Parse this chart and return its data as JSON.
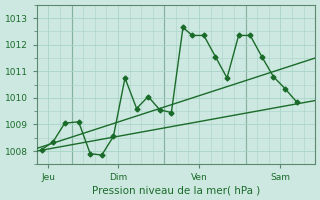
{
  "xlabel": "Pression niveau de la mer( hPa )",
  "ylim": [
    1007.5,
    1013.5
  ],
  "xlim": [
    0,
    12
  ],
  "yticks": [
    1008,
    1009,
    1010,
    1011,
    1012,
    1013
  ],
  "background_color": "#cde8e0",
  "grid_color": "#a8d4c8",
  "line_color": "#1a6b2a",
  "day_labels": [
    "Jeu",
    "Dim",
    "Ven",
    "Sam"
  ],
  "day_positions": [
    0.5,
    3.5,
    7.0,
    10.5
  ],
  "vline_positions": [
    1.5,
    5.5,
    9.0
  ],
  "trend1_x": [
    0,
    12
  ],
  "trend1_y": [
    1008.1,
    1011.5
  ],
  "trend2_x": [
    0,
    12
  ],
  "trend2_y": [
    1008.0,
    1009.9
  ],
  "jagged_x": [
    0.2,
    0.7,
    1.2,
    1.8,
    2.3,
    2.8,
    3.3,
    3.8,
    4.3,
    4.8,
    5.3,
    5.8,
    6.3,
    6.7,
    7.2,
    7.7,
    8.2,
    8.7,
    9.2,
    9.7,
    10.2,
    10.7,
    11.2
  ],
  "jagged_y": [
    1008.05,
    1008.35,
    1009.05,
    1009.1,
    1007.9,
    1007.85,
    1008.55,
    1010.75,
    1009.6,
    1010.05,
    1009.55,
    1009.45,
    1012.65,
    1012.35,
    1012.35,
    1011.55,
    1010.75,
    1012.35,
    1012.35,
    1011.55,
    1010.8,
    1010.35,
    1009.85
  ],
  "marker_style": "D",
  "marker_size": 2.5,
  "line_width": 1.0,
  "tick_fontsize": 6.5,
  "xlabel_fontsize": 7.5
}
